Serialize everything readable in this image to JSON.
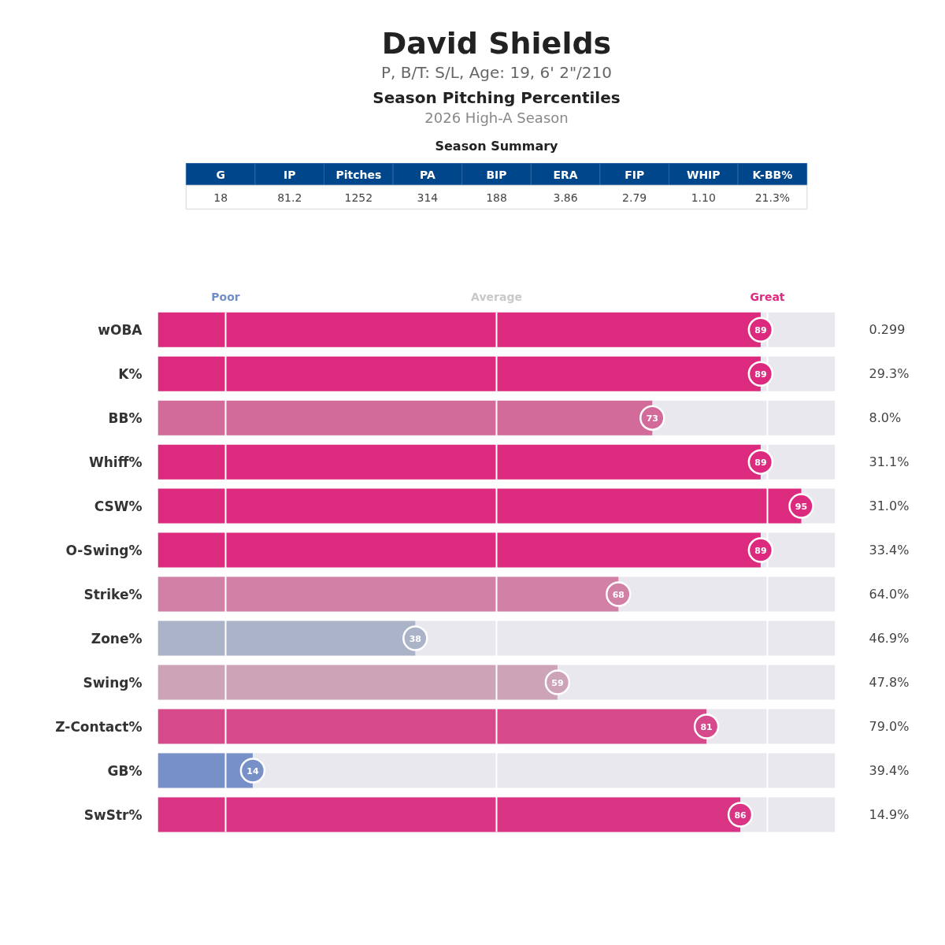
{
  "chart_data": [
    {
      "type": "other",
      "title": "David Shields",
      "subtitle": "P, B/T: S/L, Age: 19, 6' 2\"/210",
      "annotations": [
        "Season Pitching Percentiles",
        "2026 High-A Season"
      ]
    },
    {
      "type": "other",
      "title": "Season Summary",
      "categories": [
        "G",
        "IP",
        "Pitches",
        "PA",
        "BIP",
        "ERA",
        "FIP",
        "WHIP",
        "K-BB%"
      ],
      "values": [
        18,
        81.2,
        1252,
        314,
        188,
        3.86,
        2.79,
        1.1,
        21.3
      ],
      "value_labels": [
        "18",
        "81.2",
        "1252",
        "314",
        "188",
        "3.86",
        "2.79",
        "1.10",
        "21.3%"
      ],
      "color": "#00468b"
    },
    {
      "type": "bar",
      "orientation": "horizontal",
      "categories": [
        "wOBA",
        "K%",
        "BB%",
        "Whiff%",
        "CSW%",
        "O-Swing%",
        "Strike%",
        "Zone%",
        "Swing%",
        "Z-Contact%",
        "GB%",
        "SwStr%"
      ],
      "values": [
        89,
        89,
        73,
        89,
        95,
        89,
        68,
        38,
        59,
        81,
        14,
        86
      ],
      "colors": [
        "#dc2a7f",
        "#dc2a7f",
        "#d26a9a",
        "#dc2a7f",
        "#dc2a7f",
        "#dc2a7f",
        "#d180a6",
        "#aab3c7",
        "#cda3b8",
        "#d64a8c",
        "#7890c8",
        "#d93584"
      ],
      "xlim": [
        0,
        100
      ],
      "tick_labels": "y",
      "data_labels": true,
      "ref_lines": [
        {
          "axis": "x",
          "value": 10,
          "label": "Poor",
          "color": "#ffffff"
        },
        {
          "axis": "x",
          "value": 50,
          "label": "Average",
          "color": "#ffffff"
        },
        {
          "axis": "x",
          "value": 90,
          "label": "Great",
          "color": "#ffffff"
        }
      ],
      "bands": [
        {
          "axis": "x",
          "from": 0,
          "to": 100,
          "color": "#e8e8ee"
        }
      ],
      "annotations": [
        "0.299",
        "29.3%",
        "8.0%",
        "31.1%",
        "31.0%",
        "33.4%",
        "64.0%",
        "46.9%",
        "47.8%",
        "79.0%",
        "39.4%",
        "14.9%"
      ]
    }
  ]
}
